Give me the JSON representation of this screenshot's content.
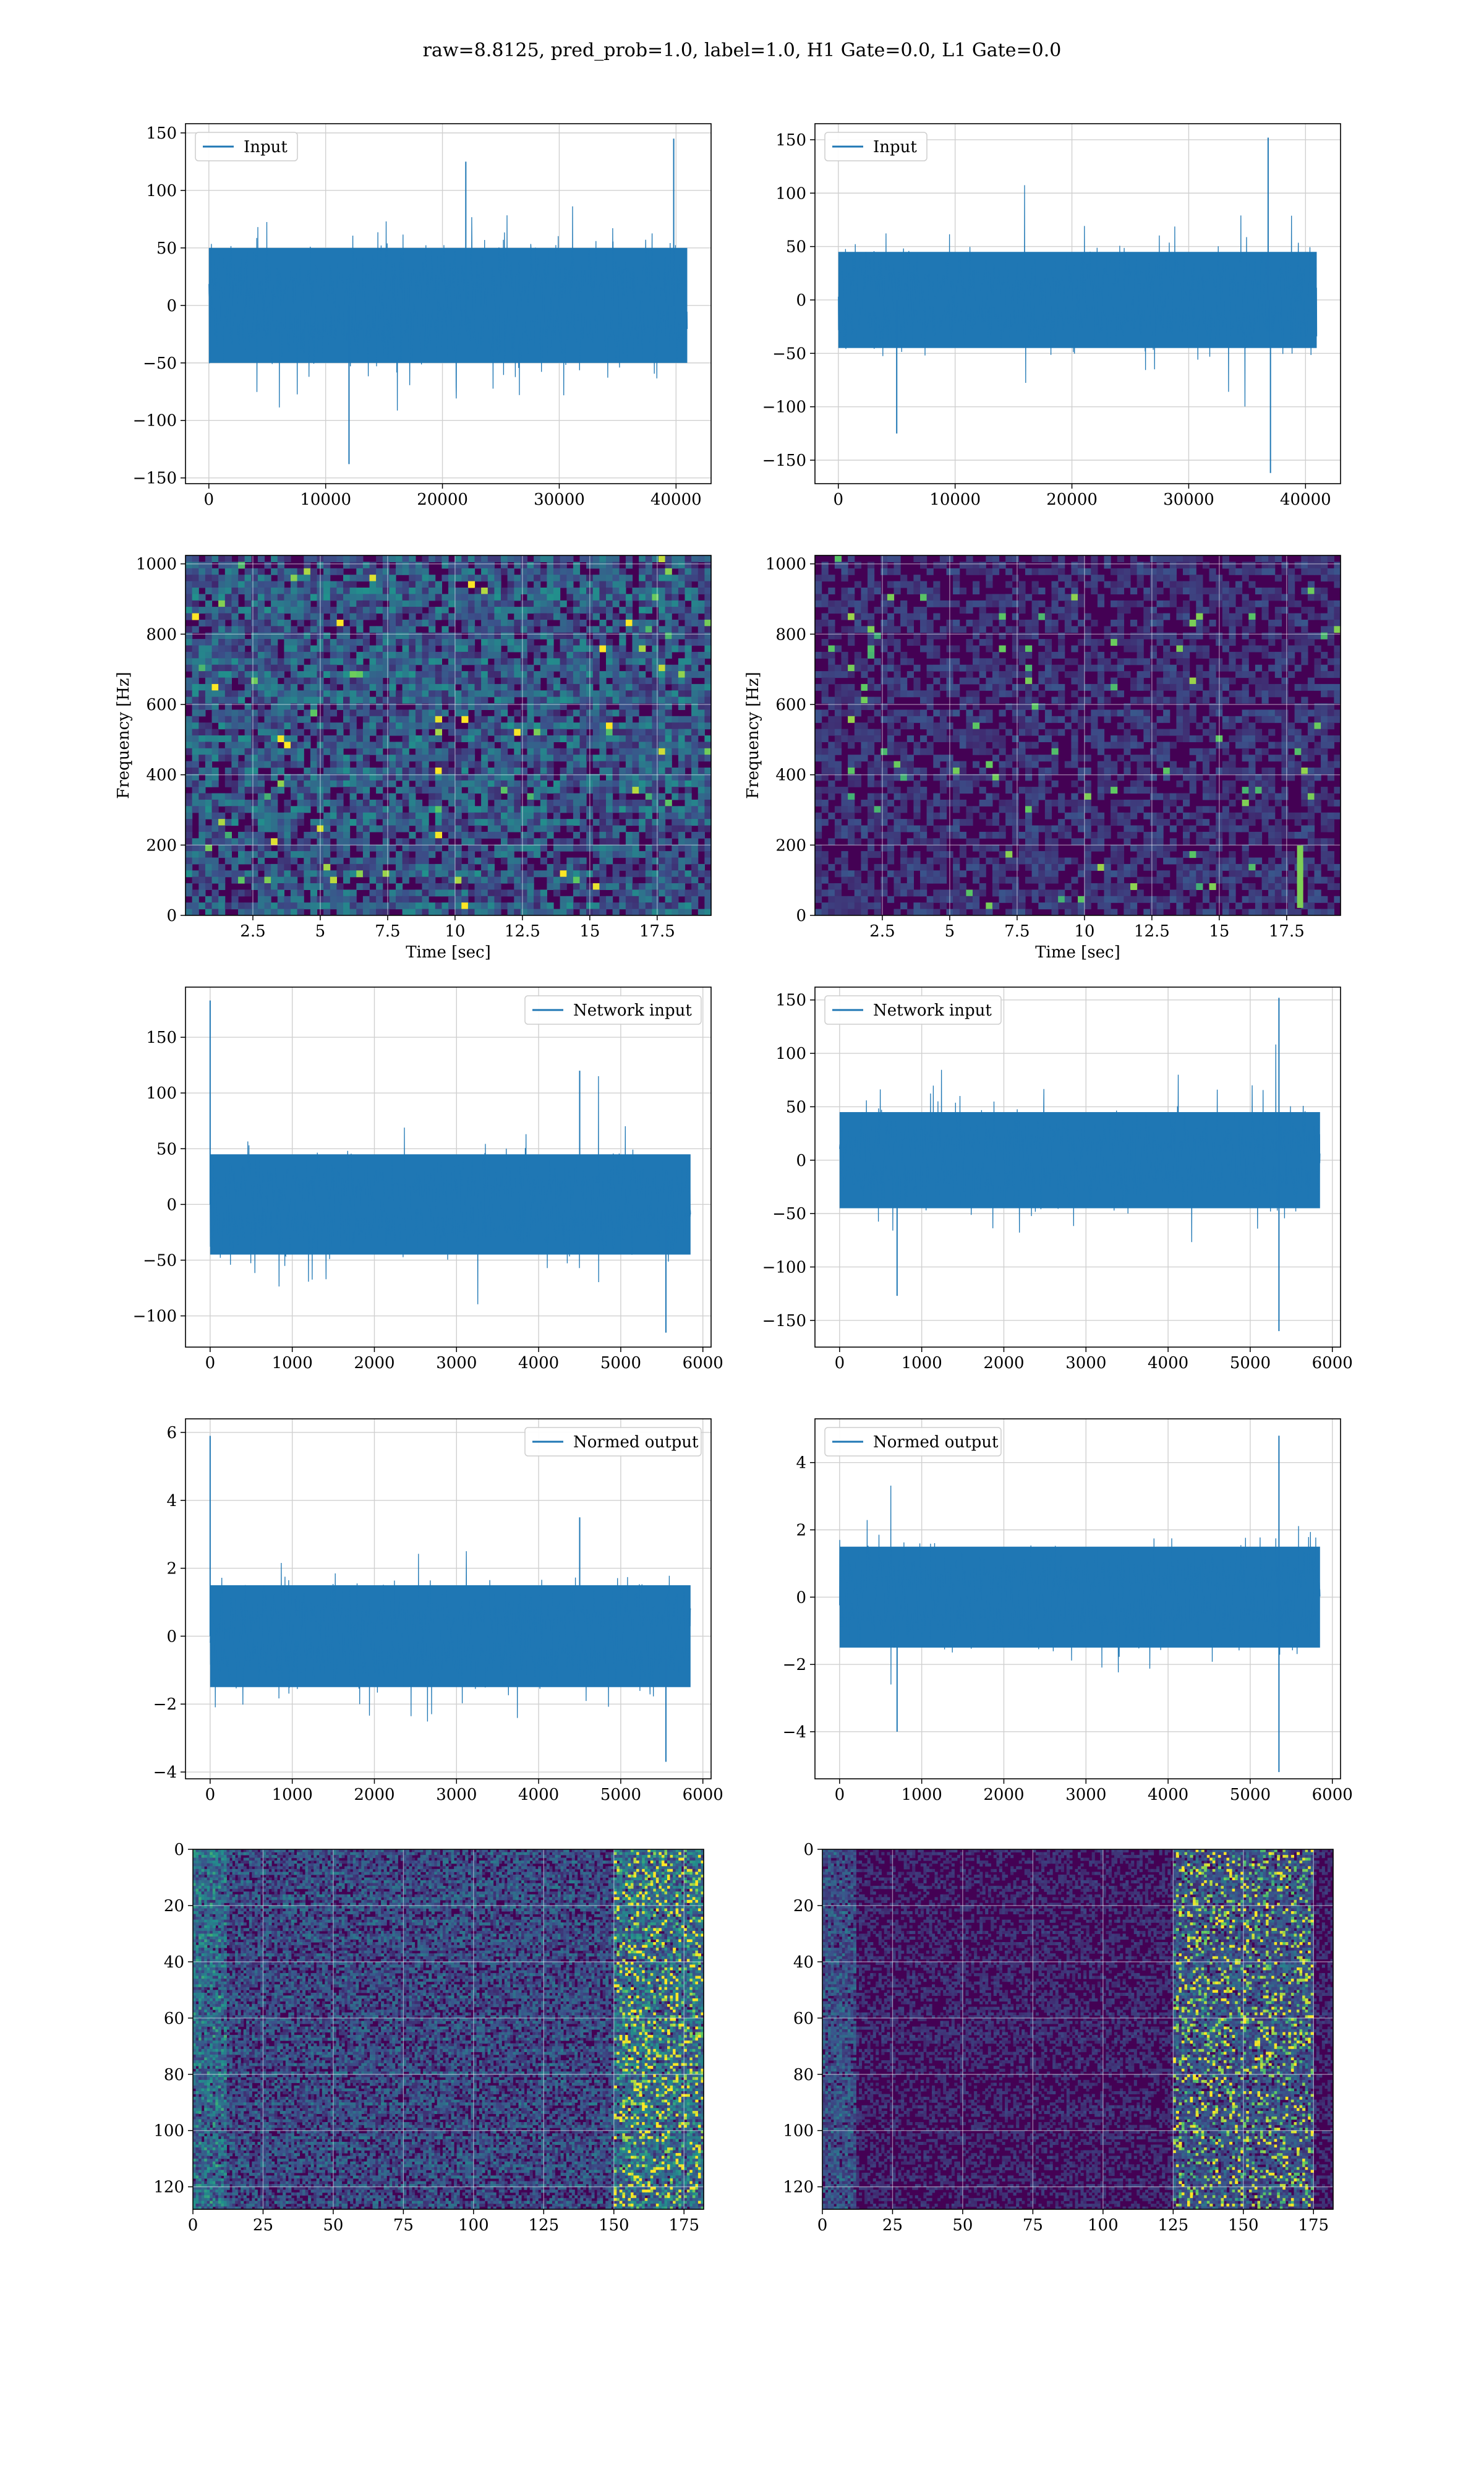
{
  "figure": {
    "title": "raw=8.8125, pred_prob=1.0, label=1.0, H1 Gate=0.0, L1 Gate=0.0"
  },
  "colors": {
    "series": "#1f77b4",
    "grid": "#d0d0d0",
    "viridis_low": "#440154",
    "viridis_mid": "#21918c",
    "viridis_high": "#fde725"
  },
  "chart_data": [
    {
      "id": "h1-input",
      "type": "line",
      "legend": "Input",
      "legend_loc": "top-left",
      "xlim": [
        -2000,
        43000
      ],
      "ylim": [
        -155,
        158
      ],
      "xticks": [
        0,
        10000,
        20000,
        30000,
        40000
      ],
      "yticks": [
        -150,
        -100,
        -50,
        0,
        50,
        100,
        150
      ],
      "x_range": [
        0,
        40960
      ],
      "envelope": 50,
      "noise": 35,
      "spike_prob": 0.05,
      "spikes": [
        {
          "x": 12000,
          "y": -138
        },
        {
          "x": 39800,
          "y": 145
        },
        {
          "x": 22000,
          "y": 125
        }
      ],
      "grid": true
    },
    {
      "id": "l1-input",
      "type": "line",
      "legend": "Input",
      "legend_loc": "top-left",
      "xlim": [
        -2000,
        43000
      ],
      "ylim": [
        -172,
        165
      ],
      "xticks": [
        0,
        10000,
        20000,
        30000,
        40000
      ],
      "yticks": [
        -150,
        -100,
        -50,
        0,
        50,
        100,
        150
      ],
      "x_range": [
        0,
        40960
      ],
      "envelope": 45,
      "noise": 32,
      "spike_prob": 0.05,
      "spikes": [
        {
          "x": 36800,
          "y": 152
        },
        {
          "x": 37000,
          "y": -162
        },
        {
          "x": 5000,
          "y": -125
        }
      ],
      "grid": true
    },
    {
      "id": "h1-spectrogram",
      "type": "heatmap",
      "xlabel": "Time [sec]",
      "ylabel": "Frequency [Hz]",
      "xlim": [
        0,
        19.5
      ],
      "ylim": [
        0,
        1024
      ],
      "xticks": [
        2.5,
        5.0,
        7.5,
        10.0,
        12.5,
        15.0,
        17.5
      ],
      "yticks": [
        0,
        200,
        400,
        600,
        800,
        1000
      ],
      "cols": 80,
      "rows": 56,
      "density": 0.42,
      "hot_spots": [],
      "grid": true
    },
    {
      "id": "l1-spectrogram",
      "type": "heatmap",
      "xlabel": "Time [sec]",
      "ylabel": "Frequency [Hz]",
      "xlim": [
        0,
        19.5
      ],
      "ylim": [
        0,
        1024
      ],
      "xticks": [
        2.5,
        5.0,
        7.5,
        10.0,
        12.5,
        15.0,
        17.5
      ],
      "yticks": [
        0,
        200,
        400,
        600,
        800,
        1000
      ],
      "cols": 80,
      "rows": 56,
      "density": 0.22,
      "hot_spots": [
        {
          "x": 18.0,
          "y": 60
        },
        {
          "x": 18.0,
          "y": 110
        },
        {
          "x": 18.0,
          "y": 160
        }
      ],
      "grid": true
    },
    {
      "id": "h1-network-input",
      "type": "line",
      "legend": "Network input",
      "legend_loc": "top-right",
      "xlim": [
        -300,
        6100
      ],
      "ylim": [
        -128,
        195
      ],
      "xticks": [
        0,
        1000,
        2000,
        3000,
        4000,
        5000,
        6000
      ],
      "yticks": [
        -100,
        -50,
        0,
        50,
        100,
        150
      ],
      "x_range": [
        0,
        5850
      ],
      "envelope": 45,
      "noise": 30,
      "spike_prob": 0.06,
      "spikes": [
        {
          "x": 0,
          "y": 183
        },
        {
          "x": 5550,
          "y": -115
        },
        {
          "x": 4500,
          "y": 120
        }
      ],
      "grid": true
    },
    {
      "id": "l1-network-input",
      "type": "line",
      "legend": "Network input",
      "legend_loc": "top-left",
      "xlim": [
        -300,
        6100
      ],
      "ylim": [
        -175,
        162
      ],
      "xticks": [
        0,
        1000,
        2000,
        3000,
        4000,
        5000,
        6000
      ],
      "yticks": [
        -150,
        -100,
        -50,
        0,
        50,
        100,
        150
      ],
      "x_range": [
        0,
        5850
      ],
      "envelope": 45,
      "noise": 30,
      "spike_prob": 0.06,
      "spikes": [
        {
          "x": 5350,
          "y": 152
        },
        {
          "x": 5350,
          "y": -160
        },
        {
          "x": 700,
          "y": -127
        }
      ],
      "grid": true
    },
    {
      "id": "h1-normed-output",
      "type": "line",
      "legend": "Normed output",
      "legend_loc": "top-right",
      "xlim": [
        -300,
        6100
      ],
      "ylim": [
        -4.2,
        6.4
      ],
      "xticks": [
        0,
        1000,
        2000,
        3000,
        4000,
        5000,
        6000
      ],
      "yticks": [
        -4,
        -2,
        0,
        2,
        4,
        6
      ],
      "x_range": [
        0,
        5850
      ],
      "envelope": 1.5,
      "noise": 1.0,
      "spike_prob": 0.06,
      "spikes": [
        {
          "x": 0,
          "y": 5.9
        },
        {
          "x": 5550,
          "y": -3.7
        },
        {
          "x": 4500,
          "y": 3.5
        }
      ],
      "grid": true
    },
    {
      "id": "l1-normed-output",
      "type": "line",
      "legend": "Normed output",
      "legend_loc": "top-left",
      "xlim": [
        -300,
        6100
      ],
      "ylim": [
        -5.4,
        5.3
      ],
      "xticks": [
        0,
        1000,
        2000,
        3000,
        4000,
        5000,
        6000
      ],
      "yticks": [
        -4,
        -2,
        0,
        2,
        4
      ],
      "x_range": [
        0,
        5850
      ],
      "envelope": 1.5,
      "noise": 1.0,
      "spike_prob": 0.06,
      "spikes": [
        {
          "x": 5350,
          "y": 4.8
        },
        {
          "x": 5350,
          "y": -5.2
        },
        {
          "x": 700,
          "y": -4.0
        }
      ],
      "grid": true
    },
    {
      "id": "h1-feature-map",
      "type": "heatmap",
      "xlim": [
        0,
        182
      ],
      "ylim": [
        128,
        0
      ],
      "xticks": [
        0,
        25,
        50,
        75,
        100,
        125,
        150,
        175
      ],
      "yticks": [
        0,
        20,
        40,
        60,
        80,
        100,
        120
      ],
      "cols": 182,
      "rows": 128,
      "density": 0.35,
      "bright_band": [
        150,
        182
      ],
      "grid": true
    },
    {
      "id": "l1-feature-map",
      "type": "heatmap",
      "xlim": [
        0,
        182
      ],
      "ylim": [
        128,
        0
      ],
      "xticks": [
        0,
        25,
        50,
        75,
        100,
        125,
        150,
        175
      ],
      "yticks": [
        0,
        20,
        40,
        60,
        80,
        100,
        120
      ],
      "cols": 182,
      "rows": 128,
      "density": 0.18,
      "bright_band": [
        125,
        175
      ],
      "grid": true
    }
  ]
}
